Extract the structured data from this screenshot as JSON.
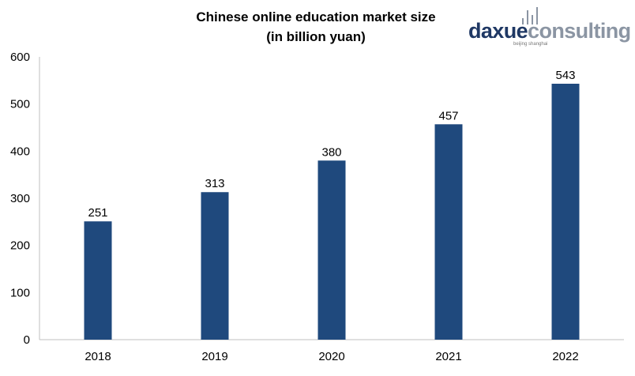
{
  "chart_data": {
    "type": "bar",
    "title_lines": [
      "Chinese online education market size",
      "(in billion yuan)"
    ],
    "categories": [
      "2018",
      "2019",
      "2020",
      "2021",
      "2022"
    ],
    "values": [
      251,
      313,
      380,
      457,
      543
    ],
    "data_labels": [
      "251",
      "313",
      "380",
      "457",
      "543"
    ],
    "ylim": [
      0,
      600
    ],
    "yticks": [
      "0",
      "100",
      "200",
      "300",
      "400",
      "500",
      "600"
    ],
    "xlabel": "",
    "ylabel": "",
    "grid": false,
    "legend": "none",
    "bar_color": "#1f497d"
  },
  "logo": {
    "part1": "daxue",
    "part2": "consulting",
    "tagline": "beijing shanghai",
    "color1": "#1f3864",
    "color2": "#8b95a3"
  }
}
